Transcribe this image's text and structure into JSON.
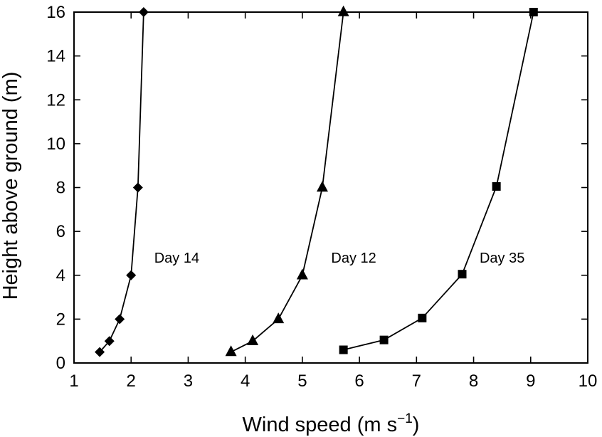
{
  "chart_data": {
    "type": "line",
    "xlabel": "Wind speed (m s",
    "xlabel_superscript": "−1",
    "xlabel_suffix": ")",
    "ylabel": "Height above ground (m)",
    "xlim": [
      1,
      10
    ],
    "ylim": [
      0,
      16
    ],
    "xticks": [
      1,
      2,
      3,
      4,
      5,
      6,
      7,
      8,
      9,
      10
    ],
    "yticks": [
      0,
      2,
      4,
      6,
      8,
      10,
      12,
      14,
      16
    ],
    "grid": false,
    "legend": "none",
    "series": [
      {
        "name": "Day 14",
        "marker": "diamond",
        "x": [
          1.45,
          1.62,
          1.8,
          2.0,
          2.12,
          2.22
        ],
        "y": [
          0.5,
          1.0,
          2.0,
          4.0,
          8.0,
          16.0
        ],
        "label_at": [
          2.8,
          4.8
        ]
      },
      {
        "name": "Day 12",
        "marker": "triangle",
        "x": [
          3.75,
          4.13,
          4.58,
          5.0,
          5.35,
          5.72
        ],
        "y": [
          0.5,
          1.0,
          2.0,
          4.0,
          8.0,
          16.0
        ],
        "label_at": [
          5.9,
          4.8
        ]
      },
      {
        "name": "Day 35",
        "marker": "square",
        "x": [
          5.72,
          6.43,
          7.1,
          7.8,
          8.4,
          9.05
        ],
        "y": [
          0.6,
          1.05,
          2.05,
          4.05,
          8.05,
          16.0
        ],
        "label_at": [
          8.5,
          4.8
        ]
      }
    ]
  }
}
